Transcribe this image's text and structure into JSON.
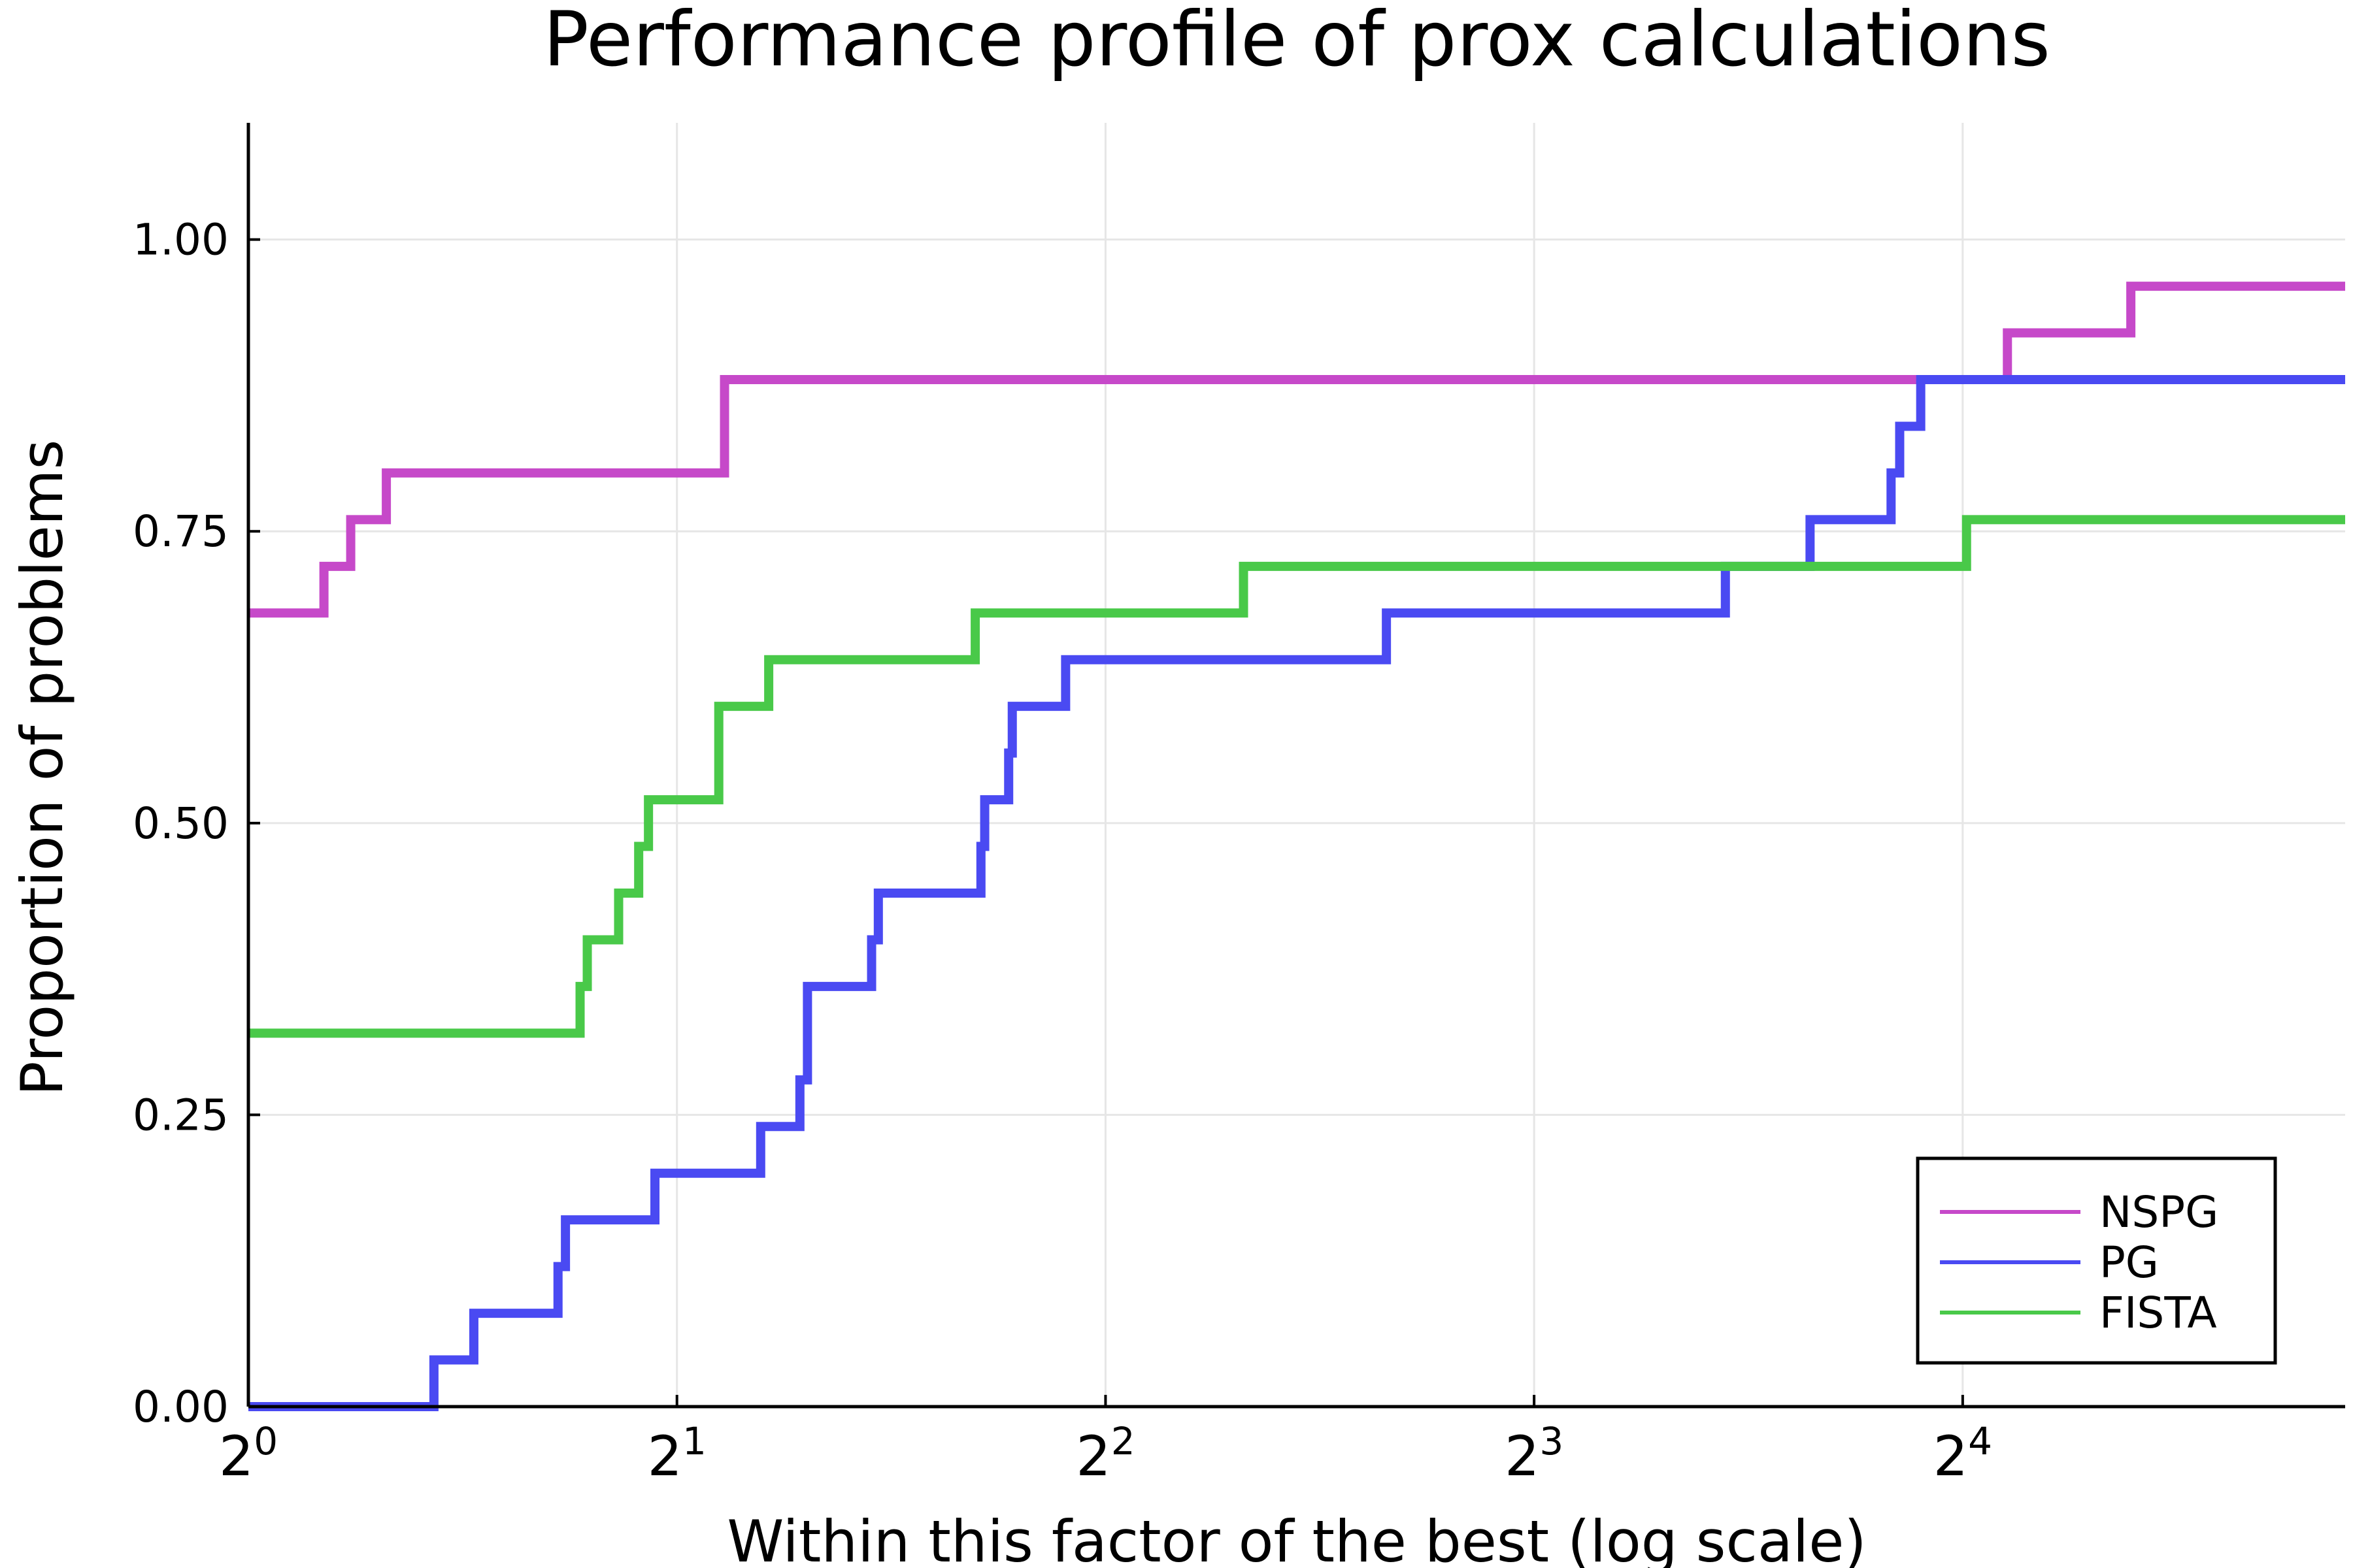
{
  "chart_data": {
    "type": "line",
    "step": true,
    "title": "Performance profile of prox calculations",
    "xlabel": "Within this factor of the best (log scale)",
    "ylabel": "Proportion of problems",
    "xscale": "log2",
    "xlim": [
      1,
      29.7
    ],
    "ylim": [
      0,
      1.1
    ],
    "xticks": [
      {
        "value": 1,
        "base": "2",
        "exp": "0"
      },
      {
        "value": 2,
        "base": "2",
        "exp": "1"
      },
      {
        "value": 4,
        "base": "2",
        "exp": "2"
      },
      {
        "value": 8,
        "base": "2",
        "exp": "3"
      },
      {
        "value": 16,
        "base": "2",
        "exp": "4"
      }
    ],
    "yticks": [
      {
        "value": 0.0,
        "label": "0.00"
      },
      {
        "value": 0.25,
        "label": "0.25"
      },
      {
        "value": 0.5,
        "label": "0.50"
      },
      {
        "value": 0.75,
        "label": "0.75"
      },
      {
        "value": 1.0,
        "label": "1.00"
      }
    ],
    "grid": true,
    "legend_position": "bottom-right",
    "series": [
      {
        "name": "NSPG",
        "color": "#c649c9",
        "points": [
          [
            1,
            0.68
          ],
          [
            1.13,
            0.72
          ],
          [
            1.18,
            0.76
          ],
          [
            1.25,
            0.8
          ],
          [
            2.16,
            0.88
          ],
          [
            16.9,
            0.88
          ],
          [
            17.2,
            0.92
          ],
          [
            21.0,
            0.96
          ],
          [
            29.7,
            0.96
          ]
        ]
      },
      {
        "name": "PG",
        "color": "#4a4af2",
        "points": [
          [
            1,
            0.0
          ],
          [
            1.35,
            0.04
          ],
          [
            1.44,
            0.08
          ],
          [
            1.65,
            0.12
          ],
          [
            1.67,
            0.16
          ],
          [
            1.93,
            0.2
          ],
          [
            2.29,
            0.24
          ],
          [
            2.44,
            0.28
          ],
          [
            2.47,
            0.36
          ],
          [
            2.74,
            0.4
          ],
          [
            2.77,
            0.44
          ],
          [
            3.27,
            0.48
          ],
          [
            3.29,
            0.52
          ],
          [
            3.42,
            0.56
          ],
          [
            3.44,
            0.6
          ],
          [
            3.75,
            0.64
          ],
          [
            6.3,
            0.68
          ],
          [
            10.9,
            0.72
          ],
          [
            12.5,
            0.76
          ],
          [
            14.25,
            0.8
          ],
          [
            14.45,
            0.84
          ],
          [
            14.95,
            0.88
          ],
          [
            29.7,
            0.88
          ]
        ]
      },
      {
        "name": "FISTA",
        "color": "#49c949",
        "points": [
          [
            1,
            0.32
          ],
          [
            1.71,
            0.36
          ],
          [
            1.73,
            0.4
          ],
          [
            1.82,
            0.44
          ],
          [
            1.88,
            0.48
          ],
          [
            1.91,
            0.52
          ],
          [
            2.14,
            0.6
          ],
          [
            2.32,
            0.64
          ],
          [
            3.24,
            0.68
          ],
          [
            5.0,
            0.72
          ],
          [
            16.1,
            0.76
          ],
          [
            29.7,
            0.76
          ]
        ]
      }
    ]
  }
}
